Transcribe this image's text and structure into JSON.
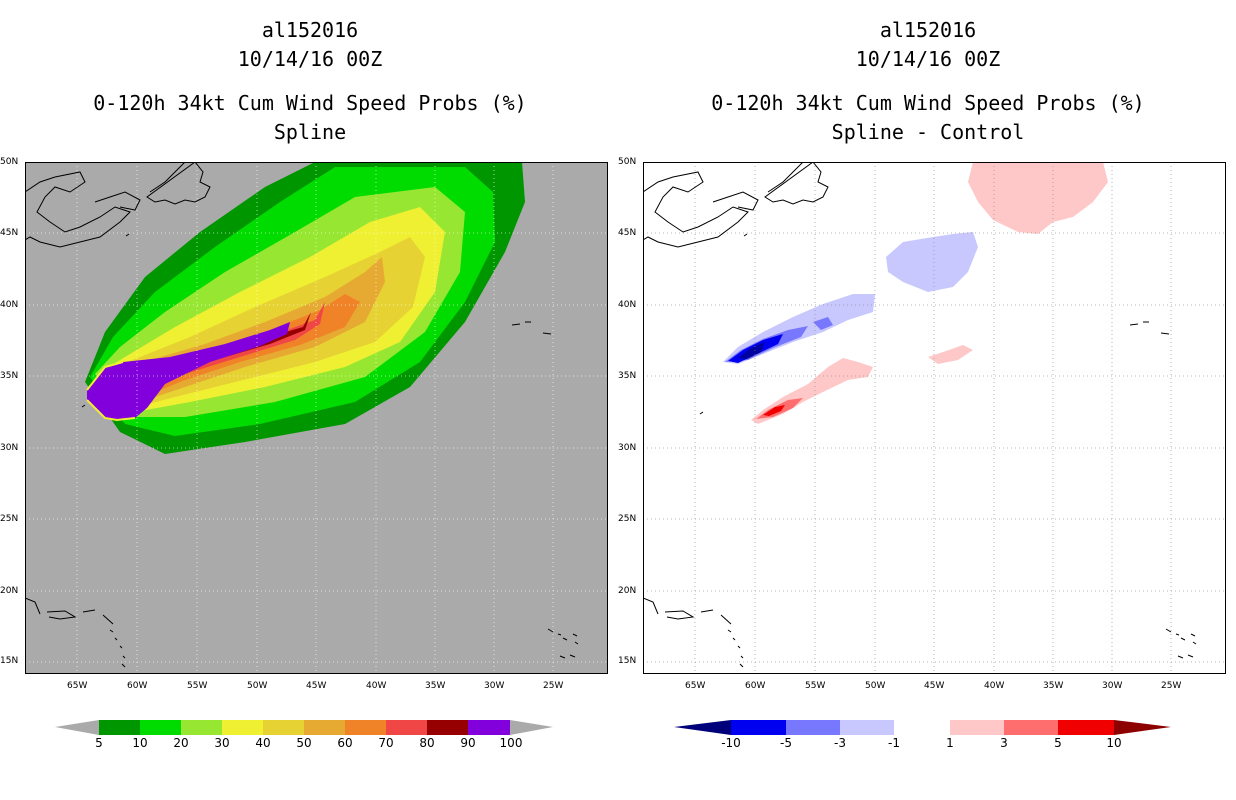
{
  "left_panel": {
    "storm_id": "al152016",
    "datetime": "10/14/16 00Z",
    "product": "0-120h 34kt Cum Wind Speed Probs (%)",
    "method": "Spline",
    "colorbar_labels": [
      "5",
      "10",
      "20",
      "30",
      "40",
      "50",
      "60",
      "70",
      "80",
      "90",
      "100"
    ],
    "colorbar_colors": [
      "#009600",
      "#00dc00",
      "#96e632",
      "#f0f032",
      "#e6d232",
      "#e6aa32",
      "#f08228",
      "#f04646",
      "#960000",
      "#8200dc"
    ]
  },
  "right_panel": {
    "storm_id": "al152016",
    "datetime": "10/14/16 00Z",
    "product": "0-120h 34kt Cum Wind Speed Probs (%)",
    "method": "Spline - Control",
    "colorbar_labels": [
      "-10",
      "-5",
      "-3",
      "-1",
      "1",
      "3",
      "5",
      "10"
    ],
    "colorbar_colors": [
      "#0000a0",
      "#0000f0",
      "#7878ff",
      "#c8c8ff",
      "#ffffff",
      "#ffc8c8",
      "#ff6e6e",
      "#f00000"
    ],
    "colorbar_end_low": "#00007a",
    "colorbar_end_high": "#8c0000"
  },
  "map_axes": {
    "lon_labels": [
      "65W",
      "60W",
      "55W",
      "50W",
      "45W",
      "40W",
      "35W",
      "30W",
      "25W"
    ],
    "lat_labels": [
      "50N",
      "45N",
      "40N",
      "35N",
      "30N",
      "25N",
      "20N",
      "15N"
    ],
    "lon_range": [
      -70,
      -21
    ],
    "lat_range": [
      14,
      50
    ]
  },
  "colors": {
    "ocean_left": "#aaaaaa",
    "ocean_right": "#ffffff",
    "coast": "#000000"
  }
}
